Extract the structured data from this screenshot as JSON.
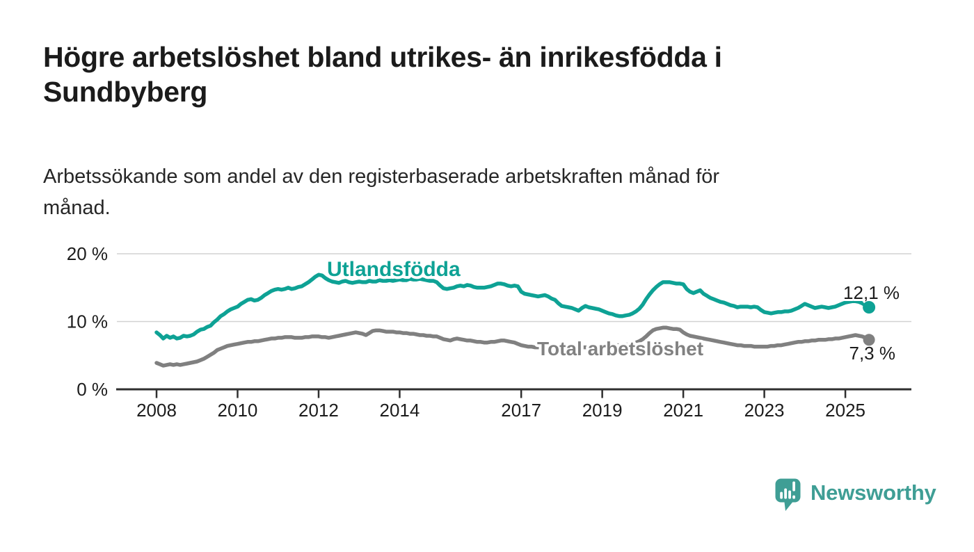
{
  "title": "Högre arbetslöshet bland utrikes- än inrikesfödda i Sundbyberg",
  "title_lines": [
    "Högre arbetslöshet bland utrikes- än inrikesfödda i",
    "Sundbyberg"
  ],
  "subtitle": "Arbetssökande som andel av den registerbaserade arbetskraften månad för månad.",
  "subtitle_lines": [
    "Arbetssökande som andel av den registerbaserade arbetskraften månad för",
    "månad."
  ],
  "branding": {
    "name": "Newsworthy"
  },
  "colors": {
    "accent_teal": "#0ea295",
    "logo_teal": "#3f9e95",
    "series_gray": "#808080",
    "gray_label": "#818181",
    "text_dark": "#1c1c1c",
    "grid": "#d2d2d2",
    "axis": "#2f2f2f",
    "halo": "#ffffff"
  },
  "chart_data": {
    "type": "line",
    "x_unit": "monthly",
    "x_start_year": 2008,
    "x_tick_labels": [
      "2008",
      "2010",
      "2012",
      "2014",
      "2017",
      "2019",
      "2021",
      "2023",
      "2025"
    ],
    "y_ticks": [
      {
        "value": 20,
        "label": "20 %"
      },
      {
        "value": 10,
        "label": "10 %"
      },
      {
        "value": 0,
        "label": "0 %"
      }
    ],
    "ylim": [
      0,
      21.5
    ],
    "grid": "horizontal",
    "legend_position": "inline-labels",
    "series": [
      {
        "name": "Utlandsfödda",
        "color": "#0ea295",
        "end_label": "12,1 %",
        "end_value": 12.1,
        "values": [
          8.4,
          8.0,
          7.5,
          7.9,
          7.6,
          7.8,
          7.5,
          7.6,
          7.9,
          7.8,
          7.9,
          8.1,
          8.5,
          8.8,
          8.9,
          9.2,
          9.4,
          9.9,
          10.3,
          10.8,
          11.1,
          11.5,
          11.8,
          12.0,
          12.2,
          12.6,
          12.9,
          13.2,
          13.3,
          13.1,
          13.2,
          13.5,
          13.9,
          14.2,
          14.5,
          14.7,
          14.8,
          14.7,
          14.8,
          15.0,
          14.8,
          14.9,
          15.1,
          15.2,
          15.5,
          15.8,
          16.2,
          16.6,
          16.9,
          16.8,
          16.4,
          16.1,
          15.9,
          15.8,
          15.7,
          15.9,
          16.0,
          15.8,
          15.7,
          15.8,
          15.9,
          15.8,
          15.8,
          16.0,
          15.9,
          15.9,
          16.1,
          16.0,
          16.0,
          16.1,
          16.0,
          16.1,
          16.2,
          16.1,
          16.1,
          16.3,
          16.2,
          16.2,
          16.3,
          16.2,
          16.1,
          16.0,
          16.0,
          15.8,
          15.3,
          14.9,
          14.8,
          14.9,
          15.0,
          15.2,
          15.3,
          15.2,
          15.4,
          15.3,
          15.1,
          15.0,
          15.0,
          15.0,
          15.1,
          15.2,
          15.4,
          15.6,
          15.6,
          15.5,
          15.3,
          15.2,
          15.3,
          15.2,
          14.4,
          14.1,
          14.0,
          13.9,
          13.8,
          13.7,
          13.8,
          13.9,
          13.7,
          13.4,
          13.2,
          12.7,
          12.3,
          12.2,
          12.1,
          12.0,
          11.8,
          11.6,
          12.0,
          12.3,
          12.1,
          12.0,
          11.9,
          11.8,
          11.6,
          11.4,
          11.2,
          11.1,
          10.9,
          10.8,
          10.8,
          10.9,
          11.0,
          11.2,
          11.5,
          11.9,
          12.5,
          13.3,
          14.0,
          14.6,
          15.1,
          15.5,
          15.8,
          15.8,
          15.8,
          15.7,
          15.6,
          15.6,
          15.5,
          14.8,
          14.4,
          14.2,
          14.4,
          14.6,
          14.1,
          13.8,
          13.5,
          13.3,
          13.1,
          12.9,
          12.8,
          12.6,
          12.4,
          12.3,
          12.1,
          12.2,
          12.2,
          12.2,
          12.1,
          12.2,
          12.1,
          11.7,
          11.4,
          11.3,
          11.2,
          11.3,
          11.4,
          11.4,
          11.5,
          11.5,
          11.6,
          11.8,
          12.0,
          12.3,
          12.6,
          12.4,
          12.2,
          12.0,
          12.1,
          12.2,
          12.1,
          12.0,
          12.1,
          12.2,
          12.4,
          12.6,
          12.8,
          12.9,
          13.0,
          13.0,
          12.9,
          12.7,
          12.4,
          12.1
        ]
      },
      {
        "name": "Total arbetslöshet",
        "color": "#808080",
        "end_label": "7,3 %",
        "end_value": 7.3,
        "values": [
          3.9,
          3.7,
          3.5,
          3.6,
          3.7,
          3.6,
          3.7,
          3.6,
          3.7,
          3.8,
          3.9,
          4.0,
          4.1,
          4.3,
          4.5,
          4.8,
          5.1,
          5.4,
          5.8,
          6.0,
          6.2,
          6.4,
          6.5,
          6.6,
          6.7,
          6.8,
          6.9,
          7.0,
          7.0,
          7.1,
          7.1,
          7.2,
          7.3,
          7.4,
          7.5,
          7.5,
          7.6,
          7.6,
          7.7,
          7.7,
          7.7,
          7.6,
          7.6,
          7.6,
          7.7,
          7.7,
          7.8,
          7.8,
          7.8,
          7.7,
          7.7,
          7.6,
          7.7,
          7.8,
          7.9,
          8.0,
          8.1,
          8.2,
          8.3,
          8.4,
          8.3,
          8.2,
          8.0,
          8.3,
          8.6,
          8.7,
          8.7,
          8.6,
          8.5,
          8.5,
          8.5,
          8.4,
          8.4,
          8.3,
          8.3,
          8.2,
          8.2,
          8.1,
          8.0,
          8.0,
          7.9,
          7.9,
          7.8,
          7.8,
          7.6,
          7.4,
          7.3,
          7.2,
          7.4,
          7.5,
          7.4,
          7.3,
          7.2,
          7.2,
          7.1,
          7.0,
          7.0,
          6.9,
          6.9,
          7.0,
          7.0,
          7.1,
          7.2,
          7.2,
          7.1,
          7.0,
          6.9,
          6.7,
          6.5,
          6.4,
          6.3,
          6.3,
          6.2,
          6.2,
          6.2,
          6.2,
          6.2,
          6.2,
          6.2,
          6.2,
          6.2,
          6.2,
          6.1,
          6.1,
          6.1,
          6.1,
          6.2,
          6.2,
          6.2,
          6.3,
          6.3,
          6.3,
          6.3,
          6.4,
          6.4,
          6.4,
          6.5,
          6.5,
          6.5,
          6.6,
          6.6,
          6.7,
          6.9,
          7.1,
          7.4,
          7.8,
          8.3,
          8.7,
          8.9,
          9.0,
          9.1,
          9.1,
          9.0,
          8.9,
          8.9,
          8.8,
          8.4,
          8.1,
          7.9,
          7.8,
          7.7,
          7.6,
          7.5,
          7.4,
          7.3,
          7.2,
          7.1,
          7.0,
          6.9,
          6.8,
          6.7,
          6.6,
          6.5,
          6.5,
          6.4,
          6.4,
          6.4,
          6.3,
          6.3,
          6.3,
          6.3,
          6.3,
          6.4,
          6.4,
          6.5,
          6.5,
          6.6,
          6.7,
          6.8,
          6.9,
          7.0,
          7.0,
          7.1,
          7.1,
          7.2,
          7.2,
          7.3,
          7.3,
          7.3,
          7.4,
          7.4,
          7.5,
          7.5,
          7.6,
          7.7,
          7.8,
          7.9,
          8.0,
          7.9,
          7.8,
          7.6,
          7.3
        ]
      }
    ]
  }
}
